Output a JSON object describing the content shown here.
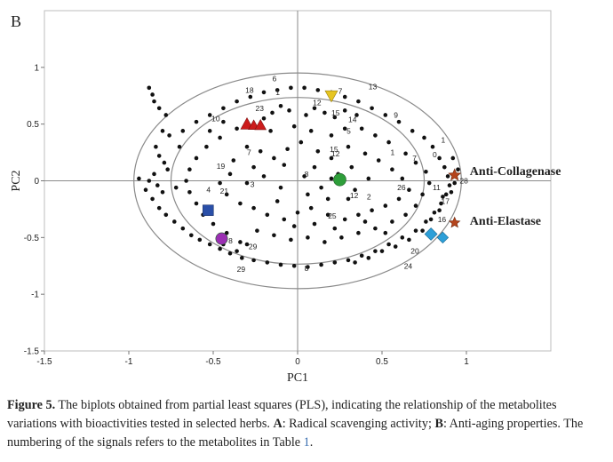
{
  "panel_letter": "B",
  "chart_data": {
    "type": "scatter",
    "title": "",
    "xlabel": "PC1",
    "ylabel": "PC2",
    "xlim": [
      -1.5,
      1.5
    ],
    "ylim": [
      -1.5,
      1.5
    ],
    "xticks": [
      -1.5,
      -1,
      -0.5,
      0,
      0.5,
      1
    ],
    "xtick_labels": [
      "-1.5",
      "-1",
      "-0.5",
      "0",
      "0.5",
      "1"
    ],
    "yticks": [
      -1.5,
      -1,
      -0.5,
      0,
      0.5,
      1
    ],
    "ytick_labels": [
      "-1.5",
      "-1",
      "-0.5",
      "0",
      "0.5",
      "1"
    ],
    "ellipses": [
      {
        "rx": 0.97,
        "ry": 0.97
      },
      {
        "rx": 0.75,
        "ry": 0.75
      }
    ],
    "series": [
      {
        "name": "metabolites",
        "points": [
          [
            -0.88,
            0.82
          ],
          [
            -0.86,
            0.76
          ],
          [
            -0.85,
            0.7
          ],
          [
            -0.82,
            0.64
          ],
          [
            -0.78,
            0.58
          ],
          [
            -0.8,
            0.44
          ],
          [
            -0.76,
            0.4
          ],
          [
            -0.84,
            0.3
          ],
          [
            -0.82,
            0.22
          ],
          [
            -0.79,
            0.16
          ],
          [
            -0.77,
            0.1
          ],
          [
            -0.85,
            0.06
          ],
          [
            -0.88,
            0.0
          ],
          [
            -0.83,
            -0.04
          ],
          [
            -0.8,
            -0.1
          ],
          [
            -0.86,
            -0.16
          ],
          [
            -0.82,
            -0.24
          ],
          [
            -0.78,
            -0.3
          ],
          [
            -0.73,
            -0.36
          ],
          [
            -0.68,
            -0.42
          ],
          [
            -0.63,
            -0.48
          ],
          [
            -0.58,
            -0.52
          ],
          [
            -0.52,
            -0.56
          ],
          [
            -0.46,
            -0.6
          ],
          [
            -0.4,
            -0.64
          ],
          [
            -0.33,
            -0.68
          ],
          [
            -0.26,
            -0.7
          ],
          [
            -0.18,
            -0.72
          ],
          [
            -0.1,
            -0.74
          ],
          [
            -0.02,
            -0.75
          ],
          [
            0.06,
            -0.76
          ],
          [
            0.14,
            -0.74
          ],
          [
            0.22,
            -0.72
          ],
          [
            0.3,
            -0.7
          ],
          [
            0.38,
            -0.66
          ],
          [
            0.46,
            -0.62
          ],
          [
            0.54,
            -0.56
          ],
          [
            0.62,
            -0.5
          ],
          [
            0.7,
            -0.44
          ],
          [
            0.76,
            -0.36
          ],
          [
            0.81,
            -0.28
          ],
          [
            0.85,
            -0.2
          ],
          [
            0.88,
            -0.12
          ],
          [
            0.9,
            -0.04
          ],
          [
            0.89,
            0.04
          ],
          [
            0.87,
            0.12
          ],
          [
            0.84,
            0.2
          ],
          [
            0.8,
            0.3
          ],
          [
            0.75,
            0.38
          ],
          [
            0.68,
            0.44
          ],
          [
            0.6,
            0.52
          ],
          [
            0.52,
            0.58
          ],
          [
            0.44,
            0.64
          ],
          [
            0.36,
            0.7
          ],
          [
            0.28,
            0.74
          ],
          [
            0.2,
            0.78
          ],
          [
            0.12,
            0.8
          ],
          [
            0.04,
            0.82
          ],
          [
            -0.04,
            0.82
          ],
          [
            -0.12,
            0.8
          ],
          [
            -0.2,
            0.78
          ],
          [
            -0.28,
            0.74
          ],
          [
            -0.36,
            0.7
          ],
          [
            -0.44,
            0.64
          ],
          [
            -0.52,
            0.58
          ],
          [
            -0.6,
            0.52
          ],
          [
            -0.68,
            0.44
          ],
          [
            -0.2,
            0.55
          ],
          [
            -0.15,
            0.6
          ],
          [
            -0.1,
            0.66
          ],
          [
            -0.05,
            0.62
          ],
          [
            0.05,
            0.58
          ],
          [
            0.1,
            0.64
          ],
          [
            0.16,
            0.6
          ],
          [
            0.22,
            0.56
          ],
          [
            0.28,
            0.62
          ],
          [
            0.35,
            0.58
          ],
          [
            -0.3,
            0.3
          ],
          [
            -0.22,
            0.26
          ],
          [
            -0.38,
            0.18
          ],
          [
            -0.26,
            0.12
          ],
          [
            -0.14,
            0.2
          ],
          [
            -0.06,
            0.28
          ],
          [
            0.02,
            0.34
          ],
          [
            0.12,
            0.26
          ],
          [
            0.2,
            0.2
          ],
          [
            0.3,
            0.3
          ],
          [
            0.4,
            0.24
          ],
          [
            0.48,
            0.18
          ],
          [
            0.56,
            0.1
          ],
          [
            0.62,
            0.02
          ],
          [
            0.66,
            -0.08
          ],
          [
            0.6,
            -0.16
          ],
          [
            0.52,
            -0.22
          ],
          [
            0.44,
            -0.26
          ],
          [
            0.36,
            -0.3
          ],
          [
            0.28,
            -0.34
          ],
          [
            0.18,
            -0.3
          ],
          [
            0.08,
            -0.24
          ],
          [
            0.0,
            -0.28
          ],
          [
            -0.08,
            -0.34
          ],
          [
            -0.18,
            -0.3
          ],
          [
            -0.26,
            -0.24
          ],
          [
            -0.34,
            -0.2
          ],
          [
            -0.42,
            -0.12
          ],
          [
            -0.46,
            -0.02
          ],
          [
            -0.4,
            0.06
          ],
          [
            -0.3,
            -0.02
          ],
          [
            -0.2,
            0.04
          ],
          [
            -0.1,
            -0.06
          ],
          [
            0.04,
            0.04
          ],
          [
            0.14,
            -0.06
          ],
          [
            0.24,
            0.06
          ],
          [
            0.34,
            -0.08
          ],
          [
            0.42,
            0.02
          ],
          [
            0.3,
            -0.16
          ],
          [
            0.18,
            -0.16
          ],
          [
            -0.12,
            -0.18
          ],
          [
            -0.24,
            -0.44
          ],
          [
            -0.14,
            -0.48
          ],
          [
            -0.04,
            -0.52
          ],
          [
            0.06,
            -0.5
          ],
          [
            0.16,
            -0.54
          ],
          [
            0.26,
            -0.5
          ],
          [
            0.36,
            -0.46
          ],
          [
            0.46,
            -0.42
          ],
          [
            0.56,
            -0.36
          ],
          [
            0.64,
            -0.3
          ],
          [
            0.7,
            -0.22
          ],
          [
            0.74,
            -0.12
          ],
          [
            0.78,
            -0.02
          ],
          [
            0.76,
            0.08
          ],
          [
            0.7,
            0.16
          ],
          [
            0.64,
            0.24
          ],
          [
            0.54,
            0.34
          ],
          [
            0.46,
            0.4
          ],
          [
            0.38,
            0.46
          ],
          [
            -0.36,
            0.46
          ],
          [
            -0.46,
            0.38
          ],
          [
            -0.54,
            0.3
          ],
          [
            -0.6,
            0.2
          ],
          [
            -0.64,
            0.1
          ],
          [
            -0.66,
            0.0
          ],
          [
            -0.64,
            -0.1
          ],
          [
            -0.6,
            -0.2
          ],
          [
            -0.56,
            -0.3
          ],
          [
            -0.5,
            -0.38
          ],
          [
            -0.42,
            -0.46
          ],
          [
            -0.34,
            -0.54
          ],
          [
            -0.44,
            -0.56
          ],
          [
            -0.36,
            -0.62
          ],
          [
            -0.3,
            -0.56
          ],
          [
            0.92,
            0.2
          ],
          [
            0.95,
            0.1
          ],
          [
            0.93,
            -0.02
          ],
          [
            0.91,
            -0.1
          ],
          [
            0.86,
            -0.14
          ],
          [
            0.84,
            -0.26
          ],
          [
            0.79,
            -0.34
          ],
          [
            0.74,
            -0.44
          ],
          [
            0.66,
            -0.52
          ],
          [
            0.58,
            -0.58
          ],
          [
            0.5,
            -0.62
          ],
          [
            0.42,
            -0.68
          ],
          [
            0.34,
            -0.72
          ],
          [
            -0.94,
            0.02
          ],
          [
            -0.9,
            -0.08
          ],
          [
            -0.72,
            -0.06
          ],
          [
            -0.7,
            0.3
          ],
          [
            -0.52,
            0.44
          ],
          [
            -0.44,
            0.52
          ],
          [
            -0.16,
            0.44
          ],
          [
            -0.02,
            0.48
          ],
          [
            0.08,
            0.44
          ],
          [
            0.2,
            0.4
          ],
          [
            0.28,
            0.46
          ],
          [
            0.2,
            0.02
          ],
          [
            0.1,
            0.12
          ],
          [
            -0.08,
            0.14
          ],
          [
            0.32,
            0.12
          ],
          [
            0.06,
            -0.12
          ],
          [
            -0.02,
            -0.4
          ],
          [
            0.1,
            -0.38
          ],
          [
            0.22,
            -0.42
          ],
          [
            0.4,
            -0.36
          ],
          [
            0.52,
            -0.46
          ]
        ]
      },
      {
        "name": "variables",
        "points": [
          {
            "x": -0.3,
            "y": 0.5,
            "shape": "triangle-up",
            "color": "#cc1b1b",
            "size": 1.0
          },
          {
            "x": -0.26,
            "y": 0.49,
            "shape": "triangle-up",
            "color": "#cc1b1b",
            "size": 0.85
          },
          {
            "x": -0.22,
            "y": 0.49,
            "shape": "triangle-up",
            "color": "#cc1b1b",
            "size": 0.9
          },
          {
            "x": 0.2,
            "y": 0.75,
            "shape": "triangle-down",
            "color": "#e6c521",
            "size": 1.0
          },
          {
            "x": 0.25,
            "y": 0.01,
            "shape": "circle",
            "color": "#2e9e3a",
            "size": 1.0
          },
          {
            "x": -0.53,
            "y": -0.26,
            "shape": "square",
            "color": "#2a4fa8",
            "size": 1.0
          },
          {
            "x": -0.45,
            "y": -0.51,
            "shape": "circle",
            "color": "#9b2fb3",
            "size": 0.95
          },
          {
            "x": 0.79,
            "y": -0.47,
            "shape": "diamond",
            "color": "#2d9fd8",
            "size": 1.0
          },
          {
            "x": 0.86,
            "y": -0.5,
            "shape": "diamond",
            "color": "#2d9fd8",
            "size": 0.9
          },
          {
            "x": 0.93,
            "y": 0.05,
            "shape": "star",
            "color": "#b5441c",
            "size": 1.0
          },
          {
            "x": 0.93,
            "y": -0.37,
            "shape": "star",
            "color": "#b5441c",
            "size": 0.9
          }
        ]
      }
    ],
    "point_labels": [
      {
        "x": -0.31,
        "y": 0.8,
        "text": "18"
      },
      {
        "x": -0.15,
        "y": 0.9,
        "text": "6"
      },
      {
        "x": -0.13,
        "y": 0.78,
        "text": "1"
      },
      {
        "x": -0.25,
        "y": 0.64,
        "text": "23"
      },
      {
        "x": -0.51,
        "y": 0.55,
        "text": "10"
      },
      {
        "x": 0.09,
        "y": 0.69,
        "text": "12"
      },
      {
        "x": 0.24,
        "y": 0.79,
        "text": "7"
      },
      {
        "x": 0.2,
        "y": 0.6,
        "text": "15"
      },
      {
        "x": 0.3,
        "y": 0.54,
        "text": "14"
      },
      {
        "x": 0.29,
        "y": 0.44,
        "text": "5"
      },
      {
        "x": 0.42,
        "y": 0.83,
        "text": "13"
      },
      {
        "x": 0.57,
        "y": 0.58,
        "text": "9"
      },
      {
        "x": 0.85,
        "y": 0.36,
        "text": "1"
      },
      {
        "x": 0.8,
        "y": 0.23,
        "text": "0"
      },
      {
        "x": 0.68,
        "y": 0.2,
        "text": "7"
      },
      {
        "x": 0.55,
        "y": 0.25,
        "text": "1"
      },
      {
        "x": -0.3,
        "y": 0.25,
        "text": "7"
      },
      {
        "x": -0.48,
        "y": 0.13,
        "text": "19"
      },
      {
        "x": 0.19,
        "y": 0.28,
        "text": "15"
      },
      {
        "x": 0.2,
        "y": 0.24,
        "text": "12"
      },
      {
        "x": 0.04,
        "y": 0.06,
        "text": "8"
      },
      {
        "x": -0.54,
        "y": -0.08,
        "text": "4"
      },
      {
        "x": -0.46,
        "y": -0.09,
        "text": "21"
      },
      {
        "x": -0.28,
        "y": -0.03,
        "text": "3"
      },
      {
        "x": 0.31,
        "y": -0.13,
        "text": "12"
      },
      {
        "x": 0.41,
        "y": -0.14,
        "text": "2"
      },
      {
        "x": 0.59,
        "y": -0.06,
        "text": "26"
      },
      {
        "x": 0.8,
        "y": -0.06,
        "text": "11"
      },
      {
        "x": 0.85,
        "y": -0.18,
        "text": "17"
      },
      {
        "x": 0.83,
        "y": -0.34,
        "text": "16"
      },
      {
        "x": 0.67,
        "y": -0.62,
        "text": "20"
      },
      {
        "x": 0.63,
        "y": -0.75,
        "text": "24"
      },
      {
        "x": 0.18,
        "y": -0.31,
        "text": "25"
      },
      {
        "x": 0.04,
        "y": -0.77,
        "text": "8"
      },
      {
        "x": -0.41,
        "y": -0.53,
        "text": "8"
      },
      {
        "x": -0.29,
        "y": -0.58,
        "text": "29"
      },
      {
        "x": -0.36,
        "y": -0.78,
        "text": "29"
      },
      {
        "x": 0.96,
        "y": 0.0,
        "text": "28"
      }
    ],
    "annotations": [
      {
        "text": "Anti-Collagenase",
        "x": 1.02,
        "y": 0.09
      },
      {
        "text": "Anti-Elastase",
        "x": 1.02,
        "y": -0.35
      }
    ]
  },
  "caption": {
    "fig_label": "Figure 5.",
    "text_1": " The biplots obtained from partial least squares (PLS), indicating the relationship of the metabolites variations with bioactivities tested in selected herbs. ",
    "a_label": "A",
    "text_2": ": Radical scavenging activity; ",
    "b_label": "B",
    "text_3": ": Anti-aging properties. The numbering of the signals refers to the metabolites in Table ",
    "table_ref": "1",
    "text_4": "."
  }
}
